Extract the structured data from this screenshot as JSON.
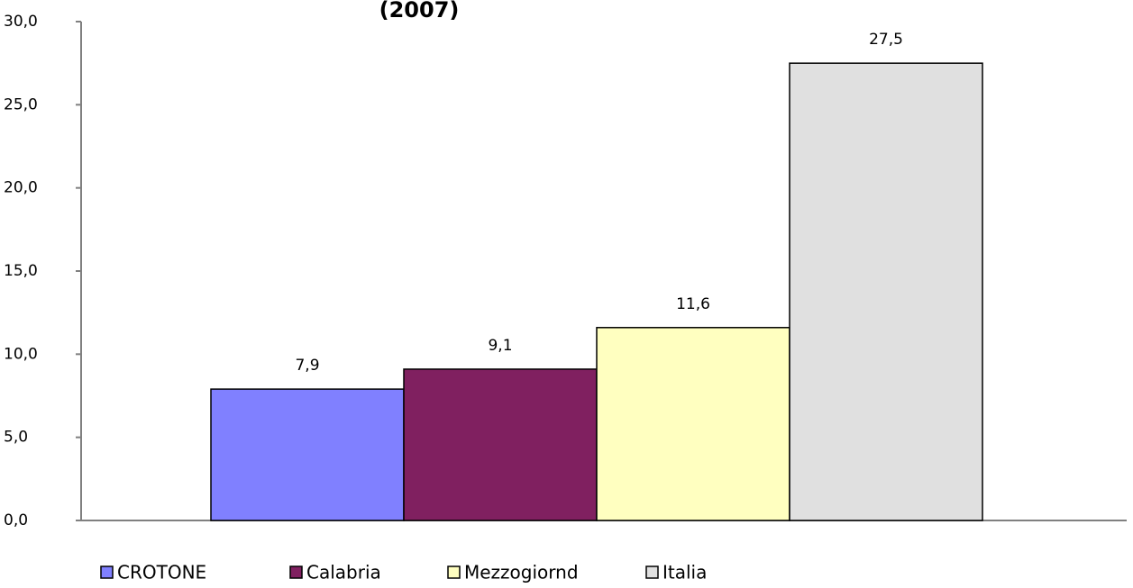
{
  "chart_data": {
    "type": "bar",
    "title": "(2007)",
    "categories": [
      null
    ],
    "series": [
      {
        "name": "CROTONE",
        "color": "#8080ff",
        "values": [
          7.9
        ],
        "value_labels": [
          "7,9"
        ]
      },
      {
        "name": "Calabria",
        "color": "#802060",
        "values": [
          9.1
        ],
        "value_labels": [
          "9,1"
        ]
      },
      {
        "name": "Mezzogiornd",
        "color": "#ffffc0",
        "values": [
          11.6
        ],
        "value_labels": [
          "11,6"
        ]
      },
      {
        "name": "Italia",
        "color": "#e0e0e0",
        "values": [
          27.5
        ],
        "value_labels": [
          "27,5"
        ]
      }
    ],
    "ylim": [
      0,
      30
    ],
    "yticks": [
      {
        "value": 0,
        "label": "0,0"
      },
      {
        "value": 5,
        "label": "5,0"
      },
      {
        "value": 10,
        "label": "10,0"
      },
      {
        "value": 15,
        "label": "15,0"
      },
      {
        "value": 20,
        "label": "20,0"
      },
      {
        "value": 25,
        "label": "25,0"
      },
      {
        "value": 30,
        "label": "30,0"
      }
    ],
    "legend": "bottom"
  }
}
